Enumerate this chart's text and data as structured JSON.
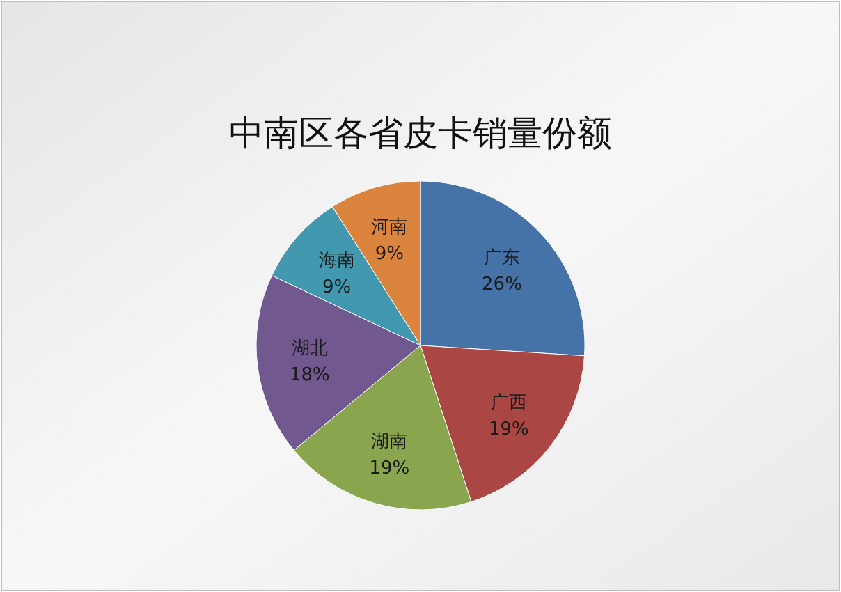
{
  "chart_data": {
    "type": "pie",
    "title": "中南区各省皮卡销量份额",
    "categories": [
      "广东",
      "广西",
      "湖南",
      "湖北",
      "海南",
      "河南"
    ],
    "values": [
      26,
      19,
      19,
      18,
      9,
      9
    ],
    "colors": [
      "#4572a7",
      "#aa4643",
      "#89a54e",
      "#71588f",
      "#4198af",
      "#db843d"
    ],
    "value_labels": [
      "26%",
      "19%",
      "19%",
      "18%",
      "9%",
      "9%"
    ]
  }
}
